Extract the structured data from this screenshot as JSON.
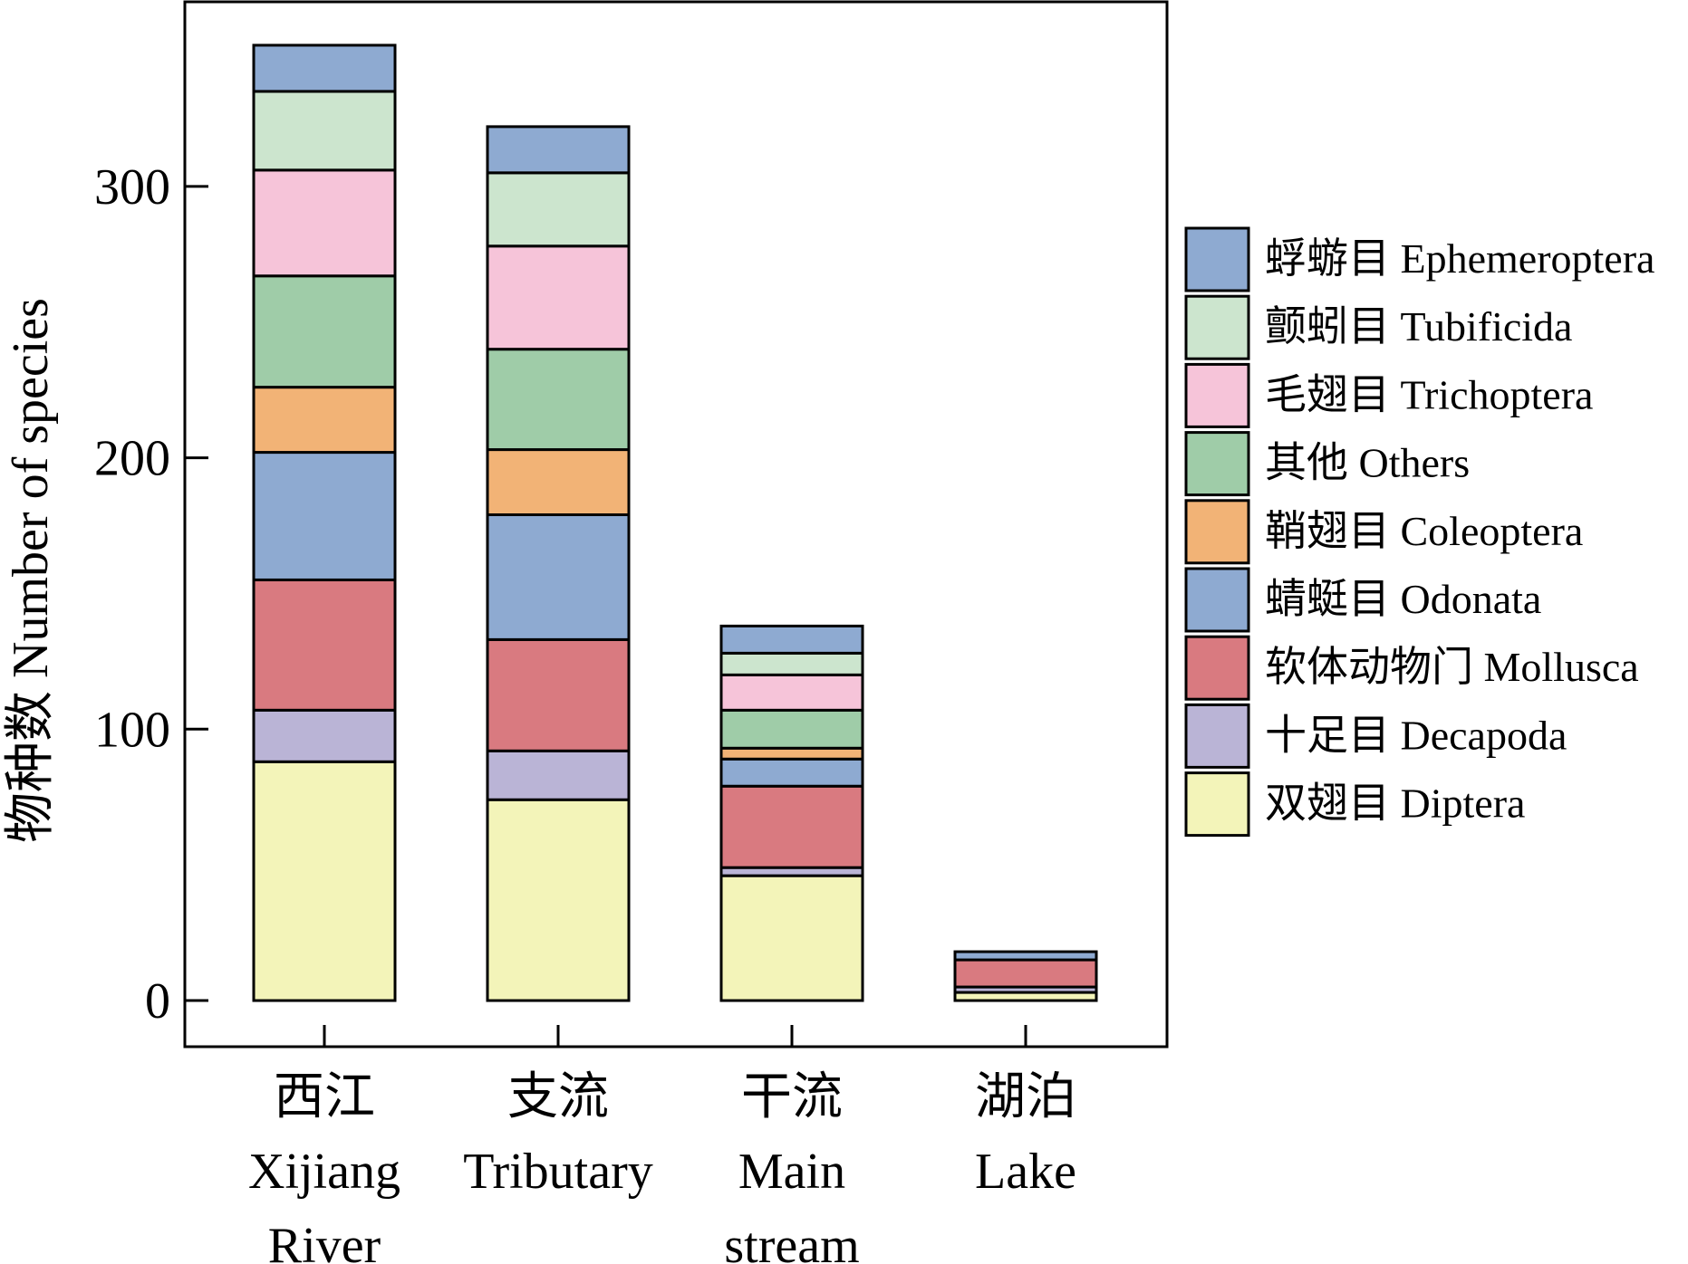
{
  "chart_data": {
    "type": "bar",
    "stacked": true,
    "title": "",
    "xlabel": "",
    "ylabel": "物种数 Number of species",
    "ylim": [
      -17,
      368
    ],
    "yticks": [
      0,
      100,
      200,
      300
    ],
    "grid": false,
    "legend_position": "right",
    "categories": [
      [
        "西江",
        "Xijiang",
        "River"
      ],
      [
        "支流",
        "Tributary"
      ],
      [
        "干流",
        "Main",
        "stream"
      ],
      [
        "湖泊",
        "Lake"
      ]
    ],
    "series": [
      {
        "name": "双翅目 Diptera",
        "color": "#f3f4b9",
        "values": [
          88,
          74,
          46,
          3
        ]
      },
      {
        "name": "十足目 Decapoda",
        "color": "#bab4d6",
        "values": [
          19,
          18,
          3,
          2
        ]
      },
      {
        "name": "软体动物门 Mollusca",
        "color": "#d97a80",
        "values": [
          48,
          41,
          30,
          10
        ]
      },
      {
        "name": "蜻蜓目 Odonata",
        "color": "#8eaad1",
        "values": [
          47,
          46,
          10,
          0
        ]
      },
      {
        "name": "鞘翅目 Coleoptera",
        "color": "#f2b376",
        "values": [
          24,
          24,
          4,
          0
        ]
      },
      {
        "name": "其他 Others",
        "color": "#9fcca8",
        "values": [
          41,
          37,
          14,
          0
        ]
      },
      {
        "name": "毛翅目 Trichoptera",
        "color": "#f6c4d9",
        "values": [
          39,
          38,
          13,
          0
        ]
      },
      {
        "name": "颤蚓目 Tubificida",
        "color": "#cce5ce",
        "values": [
          29,
          27,
          8,
          0
        ]
      },
      {
        "name": "蜉蝣目 Ephemeroptera",
        "color": "#8eaad1",
        "values": [
          17,
          17,
          10,
          3
        ]
      }
    ]
  }
}
